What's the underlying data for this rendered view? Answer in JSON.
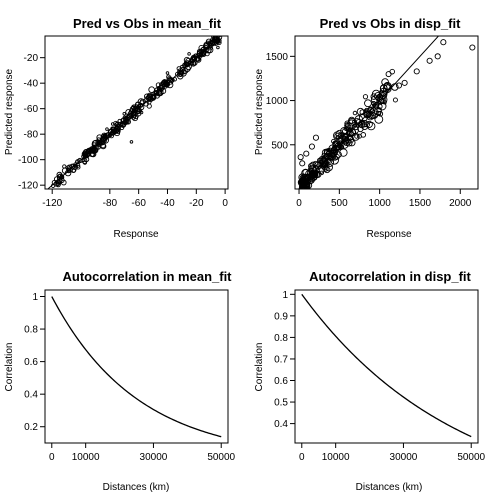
{
  "chart_data": [
    {
      "id": "p1",
      "type": "scatter",
      "title": "Pred vs Obs in mean_fit",
      "xlabel": "Response",
      "ylabel": "Predicted response",
      "xlim": [
        -125,
        2
      ],
      "ylim": [
        -123,
        -3
      ],
      "xticks": [
        -120,
        -80,
        -60,
        -40,
        -20,
        0
      ],
      "yticks": [
        -120,
        -100,
        -80,
        -60,
        -40,
        -20
      ],
      "reference_line": {
        "slope": 1,
        "intercept": 0
      },
      "points": {
        "mode": "along_line",
        "count": 320,
        "x_range": [
          -120,
          -4
        ],
        "spread": 2.2,
        "seed": 11
      },
      "outliers": [
        [
          -78,
          -72
        ],
        [
          -65,
          -86
        ],
        [
          -45,
          -45
        ],
        [
          -30,
          -27
        ],
        [
          -5,
          -12
        ],
        [
          -100,
          -101
        ],
        [
          -82,
          -76
        ],
        [
          -40,
          -32
        ],
        [
          -25,
          -17
        ],
        [
          -12,
          -8
        ],
        [
          -58,
          -63
        ],
        [
          -70,
          -64
        ]
      ]
    },
    {
      "id": "p2",
      "type": "scatter",
      "title": "Pred vs Obs in disp_fit",
      "xlabel": "Response",
      "ylabel": "Predicted response",
      "xlim": [
        -50,
        2220
      ],
      "ylim": [
        0,
        1730
      ],
      "xticks": [
        0,
        500,
        1000,
        1500,
        2000
      ],
      "yticks": [
        500,
        1000,
        1500
      ],
      "reference_line": {
        "slope": 1,
        "intercept": 0
      },
      "points": {
        "mode": "along_line",
        "count": 260,
        "x_range": [
          40,
          1200
        ],
        "spread": 75,
        "seed": 23
      },
      "outliers": [
        [
          1790,
          1660
        ],
        [
          2150,
          1600
        ],
        [
          1720,
          1500
        ],
        [
          1620,
          1450
        ],
        [
          1460,
          1330
        ],
        [
          1310,
          1200
        ],
        [
          1240,
          1170
        ],
        [
          20,
          360
        ],
        [
          40,
          290
        ],
        [
          90,
          400
        ],
        [
          160,
          480
        ],
        [
          210,
          580
        ],
        [
          260,
          320
        ],
        [
          330,
          230
        ],
        [
          470,
          520
        ],
        [
          520,
          600
        ],
        [
          600,
          740
        ],
        [
          150,
          260
        ],
        [
          80,
          190
        ]
      ]
    },
    {
      "id": "p3",
      "type": "line",
      "title": "Autocorrelation in mean_fit",
      "xlabel": "Distances (km)",
      "ylabel": "Correlation",
      "xlim": [
        -2000,
        52000
      ],
      "ylim": [
        0.1,
        1.04
      ],
      "xticks": [
        0,
        10000,
        30000,
        50000
      ],
      "yticks": [
        0.2,
        0.4,
        0.6,
        0.8,
        1.0
      ],
      "curve": {
        "form": "exp_decay",
        "decay_per_km": 3.95e-05,
        "x_range": [
          0,
          50000
        ]
      }
    },
    {
      "id": "p4",
      "type": "line",
      "title": "Autocorrelation in disp_fit",
      "xlabel": "Distances (km)",
      "ylabel": "Correlation",
      "xlim": [
        -2000,
        52000
      ],
      "ylim": [
        0.31,
        1.02
      ],
      "xticks": [
        0,
        10000,
        30000,
        50000
      ],
      "yticks": [
        0.4,
        0.5,
        0.6,
        0.7,
        0.8,
        0.9,
        1.0
      ],
      "curve": {
        "form": "exp_decay",
        "decay_per_km": 2.16e-05,
        "x_range": [
          0,
          50000
        ]
      }
    }
  ]
}
